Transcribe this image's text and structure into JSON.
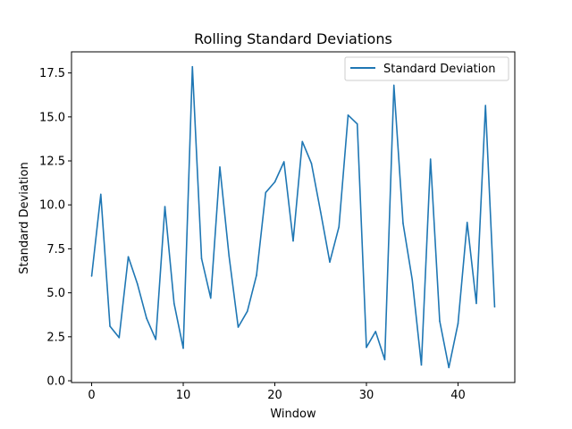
{
  "chart_data": {
    "type": "line",
    "title": "Rolling Standard Deviations",
    "xlabel": "Window",
    "ylabel": "Standard Deviation",
    "xlim": [
      -2.2,
      46.2
    ],
    "ylim": [
      -0.1,
      18.7
    ],
    "xticks": [
      0,
      10,
      20,
      30,
      40
    ],
    "yticks": [
      0.0,
      2.5,
      5.0,
      7.5,
      10.0,
      12.5,
      15.0,
      17.5
    ],
    "ytick_labels": [
      "0.0",
      "2.5",
      "5.0",
      "7.5",
      "10.0",
      "12.5",
      "15.0",
      "17.5"
    ],
    "xtick_labels": [
      "0",
      "10",
      "20",
      "30",
      "40"
    ],
    "grid": false,
    "legend_position": "top-right",
    "series": [
      {
        "name": "Standard Deviation",
        "color": "#1f77b4",
        "x": [
          0,
          1,
          2,
          3,
          4,
          5,
          6,
          7,
          8,
          9,
          10,
          11,
          12,
          13,
          14,
          15,
          16,
          17,
          18,
          19,
          20,
          21,
          22,
          23,
          24,
          25,
          26,
          27,
          28,
          29,
          30,
          31,
          32,
          33,
          34,
          35,
          36,
          37,
          38,
          39,
          40,
          41,
          42,
          43,
          44
        ],
        "values": [
          5.95,
          10.6,
          3.1,
          2.45,
          7.05,
          5.5,
          3.55,
          2.35,
          9.9,
          4.4,
          1.85,
          17.85,
          6.95,
          4.7,
          12.15,
          7.1,
          3.05,
          3.95,
          6.0,
          10.7,
          11.3,
          12.45,
          7.95,
          13.6,
          12.35,
          9.6,
          6.75,
          8.75,
          15.1,
          14.6,
          1.9,
          2.8,
          1.2,
          16.8,
          8.95,
          5.75,
          0.9,
          12.6,
          3.4,
          0.75,
          3.25,
          9.0,
          4.4,
          15.65,
          4.2
        ]
      }
    ]
  }
}
